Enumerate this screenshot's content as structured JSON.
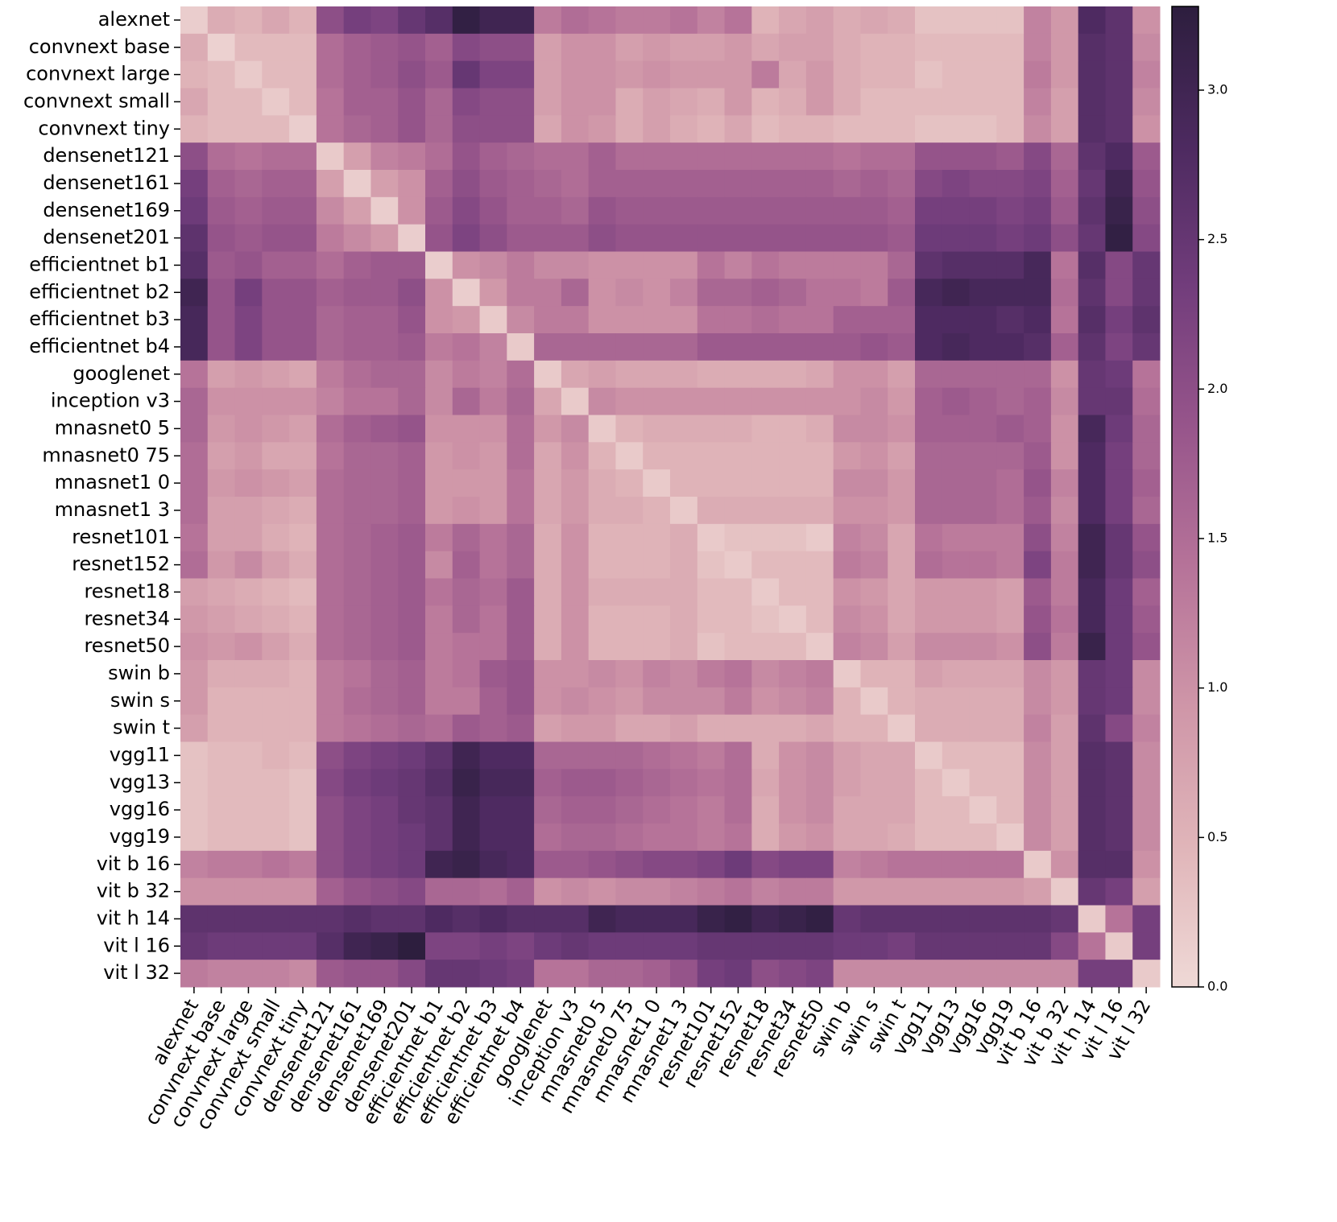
{
  "chart_data": {
    "type": "heatmap",
    "x_categories": [
      "alexnet",
      "convnext base",
      "convnext large",
      "convnext small",
      "convnext tiny",
      "densenet121",
      "densenet161",
      "densenet169",
      "densenet201",
      "efficientnet b1",
      "efficientnet b2",
      "efficientnet b3",
      "efficientnet b4",
      "googlenet",
      "inception v3",
      "mnasnet0 5",
      "mnasnet0 75",
      "mnasnet1 0",
      "mnasnet1 3",
      "resnet101",
      "resnet152",
      "resnet18",
      "resnet34",
      "resnet50",
      "swin b",
      "swin s",
      "swin t",
      "vgg11",
      "vgg13",
      "vgg16",
      "vgg19",
      "vit b 16",
      "vit b 32",
      "vit h 14",
      "vit l 16",
      "vit l 32"
    ],
    "y_categories": [
      "alexnet",
      "convnext base",
      "convnext large",
      "convnext small",
      "convnext tiny",
      "densenet121",
      "densenet161",
      "densenet169",
      "densenet201",
      "efficientnet b1",
      "efficientnet b2",
      "efficientnet b3",
      "efficientnet b4",
      "googlenet",
      "inception v3",
      "mnasnet0 5",
      "mnasnet0 75",
      "mnasnet1 0",
      "mnasnet1 3",
      "resnet101",
      "resnet152",
      "resnet18",
      "resnet34",
      "resnet50",
      "swin b",
      "swin s",
      "swin t",
      "vgg11",
      "vgg13",
      "vgg16",
      "vgg19",
      "vit b 16",
      "vit b 32",
      "vit h 14",
      "vit l 16",
      "vit l 32"
    ],
    "values": [
      [
        0.15,
        0.6,
        0.5,
        0.7,
        0.5,
        2.0,
        2.3,
        2.2,
        2.5,
        2.7,
        3.2,
        3.0,
        3.0,
        1.3,
        1.5,
        1.4,
        1.3,
        1.3,
        1.4,
        1.2,
        1.4,
        0.5,
        0.7,
        0.8,
        0.6,
        0.7,
        0.6,
        0.3,
        0.3,
        0.3,
        0.3,
        1.2,
        0.9,
        2.8,
        2.6,
        1.0
      ],
      [
        0.6,
        0.1,
        0.4,
        0.4,
        0.4,
        1.5,
        1.7,
        1.8,
        1.9,
        1.7,
        2.1,
        2.0,
        2.0,
        0.8,
        1.0,
        1.0,
        0.8,
        0.9,
        0.8,
        0.8,
        0.9,
        0.7,
        0.8,
        0.8,
        0.6,
        0.5,
        0.5,
        0.4,
        0.4,
        0.4,
        0.4,
        1.2,
        0.9,
        2.7,
        2.6,
        1.1
      ],
      [
        0.5,
        0.4,
        0.2,
        0.4,
        0.4,
        1.5,
        1.7,
        1.8,
        2.0,
        1.8,
        2.5,
        2.2,
        2.2,
        0.8,
        1.0,
        1.0,
        0.9,
        1.0,
        0.9,
        0.9,
        0.9,
        1.3,
        0.7,
        0.9,
        0.6,
        0.5,
        0.5,
        0.3,
        0.4,
        0.4,
        0.4,
        1.3,
        0.9,
        2.7,
        2.6,
        1.2
      ],
      [
        0.7,
        0.4,
        0.4,
        0.2,
        0.4,
        1.4,
        1.7,
        1.7,
        1.9,
        1.6,
        2.1,
        2.0,
        2.0,
        0.8,
        1.0,
        1.0,
        0.6,
        0.8,
        0.7,
        0.6,
        0.9,
        0.5,
        0.6,
        0.9,
        0.6,
        0.4,
        0.4,
        0.4,
        0.4,
        0.4,
        0.4,
        1.2,
        0.8,
        2.7,
        2.6,
        1.1
      ],
      [
        0.5,
        0.4,
        0.4,
        0.4,
        0.15,
        1.4,
        1.6,
        1.7,
        1.9,
        1.6,
        2.0,
        2.0,
        2.0,
        0.7,
        1.0,
        0.9,
        0.6,
        0.8,
        0.6,
        0.5,
        0.7,
        0.4,
        0.5,
        0.5,
        0.4,
        0.4,
        0.4,
        0.3,
        0.3,
        0.3,
        0.4,
        1.1,
        0.8,
        2.7,
        2.6,
        1.0
      ],
      [
        2.0,
        1.5,
        1.4,
        1.5,
        1.5,
        0.2,
        0.8,
        1.2,
        1.3,
        1.5,
        1.9,
        1.7,
        1.6,
        1.5,
        1.5,
        1.7,
        1.5,
        1.5,
        1.5,
        1.5,
        1.5,
        1.5,
        1.5,
        1.5,
        1.4,
        1.5,
        1.5,
        1.9,
        1.9,
        1.9,
        1.8,
        2.1,
        1.6,
        2.6,
        2.8,
        1.8
      ],
      [
        2.3,
        1.7,
        1.6,
        1.7,
        1.7,
        0.8,
        0.15,
        0.8,
        1.0,
        1.7,
        2.0,
        1.8,
        1.7,
        1.6,
        1.5,
        1.7,
        1.7,
        1.7,
        1.7,
        1.7,
        1.7,
        1.7,
        1.7,
        1.7,
        1.6,
        1.7,
        1.6,
        2.1,
        2.2,
        2.1,
        2.1,
        2.2,
        1.7,
        2.5,
        3.0,
        1.9
      ],
      [
        2.4,
        1.8,
        1.7,
        1.8,
        1.8,
        1.1,
        0.8,
        0.15,
        1.0,
        1.8,
        2.1,
        1.9,
        1.7,
        1.7,
        1.6,
        1.9,
        1.8,
        1.8,
        1.8,
        1.8,
        1.8,
        1.8,
        1.8,
        1.8,
        1.8,
        1.8,
        1.7,
        2.3,
        2.3,
        2.3,
        2.2,
        2.3,
        1.8,
        2.6,
        3.1,
        2.0
      ],
      [
        2.6,
        1.9,
        1.8,
        1.9,
        1.9,
        1.3,
        1.1,
        0.9,
        0.15,
        1.9,
        2.2,
        2.0,
        1.8,
        1.8,
        1.8,
        2.0,
        1.9,
        1.9,
        1.9,
        1.9,
        1.9,
        1.9,
        1.9,
        1.9,
        1.9,
        1.9,
        1.8,
        2.4,
        2.4,
        2.4,
        2.3,
        2.4,
        2.0,
        2.5,
        3.2,
        2.1
      ],
      [
        2.7,
        1.8,
        1.9,
        1.7,
        1.7,
        1.5,
        1.7,
        1.8,
        1.8,
        0.15,
        1.0,
        1.1,
        1.3,
        1.1,
        1.1,
        1.0,
        1.0,
        1.0,
        1.0,
        1.4,
        1.2,
        1.4,
        1.3,
        1.3,
        1.3,
        1.3,
        1.6,
        2.6,
        2.7,
        2.7,
        2.7,
        2.9,
        1.4,
        2.7,
        2.1,
        2.5
      ],
      [
        3.0,
        1.9,
        2.3,
        1.9,
        1.9,
        1.7,
        1.8,
        1.8,
        2.0,
        1.0,
        0.15,
        0.9,
        1.3,
        1.3,
        1.6,
        1.0,
        1.1,
        1.0,
        1.2,
        1.6,
        1.6,
        1.7,
        1.6,
        1.4,
        1.4,
        1.3,
        1.8,
        2.9,
        3.0,
        2.9,
        2.9,
        2.9,
        1.5,
        2.6,
        2.1,
        2.5
      ],
      [
        2.9,
        1.9,
        2.2,
        1.9,
        1.9,
        1.6,
        1.7,
        1.7,
        1.9,
        1.0,
        0.9,
        0.2,
        1.1,
        1.3,
        1.3,
        1.0,
        1.0,
        1.0,
        1.0,
        1.4,
        1.4,
        1.5,
        1.4,
        1.4,
        1.7,
        1.7,
        1.7,
        2.8,
        2.8,
        2.8,
        2.7,
        2.8,
        1.4,
        2.7,
        2.3,
        2.6
      ],
      [
        2.9,
        1.9,
        2.2,
        1.9,
        1.9,
        1.6,
        1.7,
        1.7,
        1.8,
        1.3,
        1.4,
        1.2,
        0.2,
        1.6,
        1.6,
        1.6,
        1.6,
        1.6,
        1.6,
        1.8,
        1.8,
        1.8,
        1.8,
        1.8,
        1.8,
        1.9,
        1.8,
        2.8,
        2.9,
        2.8,
        2.8,
        2.7,
        1.7,
        2.6,
        2.2,
        2.5
      ],
      [
        1.4,
        0.8,
        0.9,
        0.8,
        0.7,
        1.3,
        1.5,
        1.6,
        1.6,
        1.1,
        1.3,
        1.2,
        1.5,
        0.2,
        0.7,
        0.8,
        0.7,
        0.7,
        0.7,
        0.6,
        0.6,
        0.6,
        0.6,
        0.7,
        1.0,
        1.0,
        0.8,
        1.6,
        1.6,
        1.6,
        1.6,
        1.6,
        1.0,
        2.5,
        2.4,
        1.4
      ],
      [
        1.6,
        1.0,
        1.0,
        1.0,
        1.0,
        1.2,
        1.4,
        1.4,
        1.6,
        1.1,
        1.6,
        1.3,
        1.6,
        0.7,
        0.2,
        1.1,
        1.0,
        1.0,
        1.0,
        1.0,
        1.0,
        1.0,
        1.0,
        1.0,
        1.0,
        1.1,
        0.9,
        1.7,
        1.8,
        1.7,
        1.6,
        1.7,
        1.1,
        2.5,
        2.5,
        1.5
      ],
      [
        1.6,
        0.9,
        1.0,
        0.9,
        0.8,
        1.5,
        1.7,
        1.8,
        1.9,
        1.0,
        1.0,
        1.0,
        1.5,
        0.9,
        1.1,
        0.2,
        0.5,
        0.6,
        0.6,
        0.6,
        0.6,
        0.5,
        0.5,
        0.6,
        1.1,
        1.1,
        1.0,
        1.7,
        1.7,
        1.7,
        1.8,
        1.7,
        1.0,
        2.9,
        2.4,
        1.6
      ],
      [
        1.5,
        0.8,
        0.9,
        0.7,
        0.7,
        1.4,
        1.6,
        1.6,
        1.7,
        0.9,
        1.0,
        0.9,
        1.5,
        0.7,
        1.0,
        0.5,
        0.2,
        0.5,
        0.5,
        0.5,
        0.5,
        0.5,
        0.5,
        0.5,
        0.9,
        1.0,
        0.8,
        1.6,
        1.6,
        1.6,
        1.6,
        1.8,
        1.0,
        2.8,
        2.3,
        1.6
      ],
      [
        1.5,
        0.9,
        1.0,
        0.9,
        0.8,
        1.5,
        1.6,
        1.6,
        1.7,
        0.9,
        0.9,
        0.9,
        1.4,
        0.7,
        0.9,
        0.6,
        0.5,
        0.2,
        0.5,
        0.5,
        0.5,
        0.5,
        0.5,
        0.5,
        1.1,
        1.1,
        0.9,
        1.6,
        1.6,
        1.6,
        1.5,
        1.9,
        1.2,
        2.8,
        2.3,
        1.7
      ],
      [
        1.5,
        0.8,
        0.8,
        0.7,
        0.6,
        1.5,
        1.6,
        1.6,
        1.7,
        0.9,
        1.0,
        0.9,
        1.4,
        0.7,
        0.9,
        0.6,
        0.6,
        0.5,
        0.2,
        0.6,
        0.6,
        0.6,
        0.6,
        0.6,
        1.0,
        1.0,
        0.9,
        1.6,
        1.6,
        1.6,
        1.5,
        1.8,
        1.1,
        2.8,
        2.3,
        1.6
      ],
      [
        1.4,
        0.8,
        0.8,
        0.6,
        0.5,
        1.5,
        1.6,
        1.7,
        1.8,
        1.3,
        1.6,
        1.4,
        1.6,
        0.6,
        1.0,
        0.5,
        0.5,
        0.5,
        0.6,
        0.2,
        0.3,
        0.3,
        0.3,
        0.2,
        1.2,
        1.1,
        0.7,
        1.4,
        1.3,
        1.3,
        1.3,
        2.0,
        1.2,
        3.0,
        2.5,
        1.9
      ],
      [
        1.5,
        0.9,
        1.1,
        0.8,
        0.6,
        1.5,
        1.6,
        1.7,
        1.8,
        1.1,
        1.7,
        1.4,
        1.6,
        0.6,
        1.0,
        0.5,
        0.5,
        0.5,
        0.6,
        0.3,
        0.2,
        0.4,
        0.4,
        0.4,
        1.3,
        1.2,
        0.7,
        1.5,
        1.4,
        1.4,
        1.3,
        2.2,
        1.3,
        3.0,
        2.5,
        2.0
      ],
      [
        0.8,
        0.7,
        0.6,
        0.5,
        0.4,
        1.5,
        1.6,
        1.7,
        1.8,
        1.4,
        1.6,
        1.5,
        1.8,
        0.6,
        1.0,
        0.6,
        0.6,
        0.6,
        0.6,
        0.4,
        0.4,
        0.2,
        0.4,
        0.4,
        1.0,
        0.9,
        0.7,
        0.9,
        0.9,
        0.9,
        0.8,
        1.8,
        1.3,
        2.9,
        2.4,
        1.7
      ],
      [
        0.9,
        0.8,
        0.7,
        0.6,
        0.5,
        1.5,
        1.6,
        1.7,
        1.8,
        1.3,
        1.6,
        1.4,
        1.8,
        0.6,
        1.0,
        0.5,
        0.5,
        0.5,
        0.6,
        0.4,
        0.4,
        0.3,
        0.2,
        0.4,
        1.1,
        1.0,
        0.7,
        0.9,
        0.9,
        0.9,
        0.8,
        1.9,
        1.4,
        2.9,
        2.4,
        1.8
      ],
      [
        1.0,
        0.9,
        1.0,
        0.8,
        0.6,
        1.5,
        1.6,
        1.7,
        1.8,
        1.3,
        1.4,
        1.4,
        1.8,
        0.6,
        1.0,
        0.5,
        0.5,
        0.5,
        0.6,
        0.3,
        0.4,
        0.4,
        0.4,
        0.2,
        1.2,
        1.1,
        0.8,
        1.1,
        1.1,
        1.1,
        1.0,
        2.0,
        1.3,
        3.1,
        2.4,
        1.9
      ],
      [
        0.9,
        0.6,
        0.6,
        0.6,
        0.5,
        1.3,
        1.4,
        1.6,
        1.7,
        1.3,
        1.4,
        1.8,
        1.9,
        1.0,
        1.0,
        1.1,
        1.0,
        1.2,
        1.1,
        1.3,
        1.4,
        1.1,
        1.2,
        1.3,
        0.2,
        0.5,
        0.5,
        0.8,
        0.7,
        0.7,
        0.7,
        1.1,
        0.9,
        2.5,
        2.4,
        1.1
      ],
      [
        0.9,
        0.5,
        0.5,
        0.5,
        0.5,
        1.3,
        1.5,
        1.6,
        1.7,
        1.3,
        1.3,
        1.7,
        1.9,
        1.0,
        1.1,
        1.0,
        0.9,
        1.1,
        1.1,
        1.1,
        1.3,
        1.0,
        1.1,
        1.2,
        0.5,
        0.2,
        0.5,
        0.6,
        0.6,
        0.6,
        0.6,
        1.1,
        0.9,
        2.5,
        2.4,
        1.1
      ],
      [
        0.8,
        0.5,
        0.5,
        0.5,
        0.5,
        1.3,
        1.4,
        1.5,
        1.6,
        1.5,
        1.8,
        1.7,
        1.8,
        0.8,
        0.9,
        0.9,
        0.7,
        0.7,
        0.8,
        0.6,
        0.6,
        0.6,
        0.6,
        0.7,
        0.5,
        0.5,
        0.2,
        0.6,
        0.6,
        0.6,
        0.6,
        1.2,
        0.8,
        2.6,
        2.1,
        1.2
      ],
      [
        0.3,
        0.4,
        0.4,
        0.5,
        0.4,
        2.0,
        2.2,
        2.3,
        2.4,
        2.6,
        3.0,
        2.8,
        2.8,
        1.6,
        1.6,
        1.6,
        1.6,
        1.5,
        1.4,
        1.3,
        1.5,
        0.6,
        1.0,
        1.1,
        0.8,
        0.7,
        0.7,
        0.2,
        0.4,
        0.4,
        0.4,
        1.1,
        0.8,
        2.7,
        2.6,
        1.1
      ],
      [
        0.3,
        0.4,
        0.4,
        0.4,
        0.3,
        2.1,
        2.3,
        2.4,
        2.5,
        2.7,
        3.1,
        2.9,
        2.9,
        1.7,
        1.8,
        1.8,
        1.7,
        1.6,
        1.5,
        1.4,
        1.5,
        0.7,
        1.0,
        1.1,
        0.8,
        0.7,
        0.7,
        0.4,
        0.2,
        0.4,
        0.4,
        1.1,
        0.8,
        2.7,
        2.6,
        1.1
      ],
      [
        0.3,
        0.4,
        0.4,
        0.4,
        0.3,
        2.0,
        2.2,
        2.3,
        2.5,
        2.6,
        3.0,
        2.8,
        2.8,
        1.6,
        1.7,
        1.7,
        1.6,
        1.5,
        1.4,
        1.3,
        1.5,
        0.6,
        1.0,
        1.1,
        0.7,
        0.7,
        0.7,
        0.4,
        0.4,
        0.2,
        0.4,
        1.1,
        0.8,
        2.7,
        2.6,
        1.1
      ],
      [
        0.3,
        0.4,
        0.4,
        0.4,
        0.3,
        2.0,
        2.2,
        2.3,
        2.4,
        2.6,
        3.0,
        2.8,
        2.8,
        1.5,
        1.6,
        1.6,
        1.5,
        1.4,
        1.4,
        1.3,
        1.4,
        0.6,
        0.9,
        1.0,
        0.7,
        0.7,
        0.6,
        0.4,
        0.4,
        0.4,
        0.2,
        1.1,
        0.8,
        2.7,
        2.6,
        1.1
      ],
      [
        1.2,
        1.3,
        1.3,
        1.4,
        1.3,
        2.0,
        2.2,
        2.3,
        2.4,
        3.0,
        3.1,
        2.9,
        2.8,
        1.8,
        1.8,
        1.9,
        2.0,
        2.1,
        2.1,
        2.2,
        2.4,
        2.1,
        2.2,
        2.2,
        1.2,
        1.3,
        1.4,
        1.4,
        1.4,
        1.4,
        1.4,
        0.2,
        1.0,
        2.7,
        2.7,
        1.0
      ],
      [
        1.0,
        1.0,
        1.0,
        1.0,
        1.0,
        1.7,
        1.9,
        2.0,
        2.1,
        1.6,
        1.6,
        1.5,
        1.7,
        1.0,
        1.1,
        1.0,
        1.1,
        1.1,
        1.2,
        1.3,
        1.4,
        1.2,
        1.3,
        1.3,
        0.9,
        0.9,
        0.9,
        0.9,
        0.9,
        0.9,
        0.9,
        0.8,
        0.2,
        2.5,
        2.3,
        0.8
      ],
      [
        2.6,
        2.6,
        2.6,
        2.6,
        2.6,
        2.6,
        2.7,
        2.6,
        2.6,
        2.8,
        2.7,
        2.8,
        2.7,
        2.7,
        2.7,
        3.0,
        2.9,
        2.9,
        2.9,
        3.1,
        3.2,
        3.0,
        3.1,
        3.2,
        2.5,
        2.6,
        2.6,
        2.6,
        2.6,
        2.6,
        2.6,
        2.6,
        2.5,
        0.2,
        1.4,
        2.3
      ],
      [
        2.5,
        2.4,
        2.4,
        2.4,
        2.4,
        2.7,
        3.0,
        3.1,
        3.3,
        2.2,
        2.2,
        2.3,
        2.2,
        2.4,
        2.5,
        2.4,
        2.4,
        2.4,
        2.4,
        2.5,
        2.5,
        2.5,
        2.5,
        2.5,
        2.4,
        2.4,
        2.3,
        2.5,
        2.5,
        2.5,
        2.5,
        2.5,
        2.1,
        1.4,
        0.2,
        2.3
      ],
      [
        1.3,
        1.2,
        1.2,
        1.2,
        1.1,
        1.8,
        1.9,
        1.9,
        2.1,
        2.5,
        2.5,
        2.4,
        2.3,
        1.4,
        1.4,
        1.6,
        1.6,
        1.7,
        1.9,
        2.3,
        2.4,
        2.0,
        2.1,
        2.2,
        1.1,
        1.1,
        1.1,
        1.1,
        1.1,
        1.1,
        1.1,
        1.1,
        1.1,
        2.3,
        2.3,
        0.2
      ]
    ],
    "vlim": [
      0,
      3.28
    ],
    "cticks": [
      {
        "value": 0,
        "label": "0.0"
      },
      0.5,
      {
        "value": 1,
        "label": "1.0"
      },
      1.5,
      {
        "value": 2,
        "label": "2.0"
      },
      2.5,
      {
        "value": 3,
        "label": "3.0"
      }
    ],
    "colorscale": [
      "#efd9d6",
      "#e0b5b9",
      "#cf96a8",
      "#b67399",
      "#97558b",
      "#723d7c",
      "#4d2a60",
      "#2d1e3e"
    ]
  }
}
